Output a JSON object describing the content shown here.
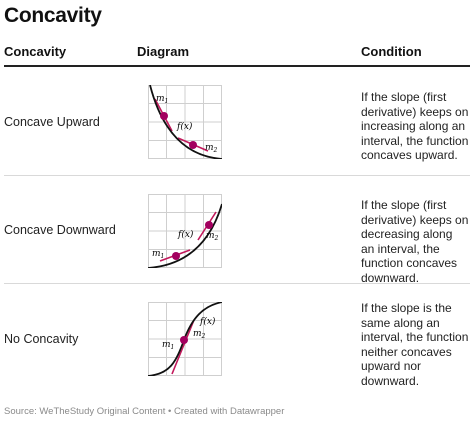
{
  "title": "Concavity",
  "headers": {
    "concavity": "Concavity",
    "diagram": "Diagram",
    "condition": "Condition"
  },
  "rows": [
    {
      "label": "Concave Upward",
      "condition": "If the slope (first derivative) keeps on increasing along an interval, the function concaves upward.",
      "diagram": {
        "m1": "m",
        "m1_sub": "1",
        "m2": "m",
        "m2_sub": "2",
        "fx": "f(x)"
      }
    },
    {
      "label": "Concave Downward",
      "condition": "If the slope (first derivative) keeps on decreasing along an interval, the function concaves downward.",
      "diagram": {
        "m1": "m",
        "m1_sub": "1",
        "m2": "m",
        "m2_sub": "2",
        "fx": "f(x)"
      }
    },
    {
      "label": "No Concavity",
      "condition": "If the slope is the same along an interval, the function neither concaves upward nor downward.",
      "diagram": {
        "m1": "m",
        "m1_sub": "1",
        "m2": "m",
        "m2_sub": "2",
        "fx": "f(x)"
      }
    }
  ],
  "footer": "Source: WeTheStudy Original Content • Created with Datawrapper",
  "colors": {
    "curve": "#111111",
    "tangent": "#c2185b",
    "point": "#a3005f",
    "grid": "#cfcfcf"
  }
}
